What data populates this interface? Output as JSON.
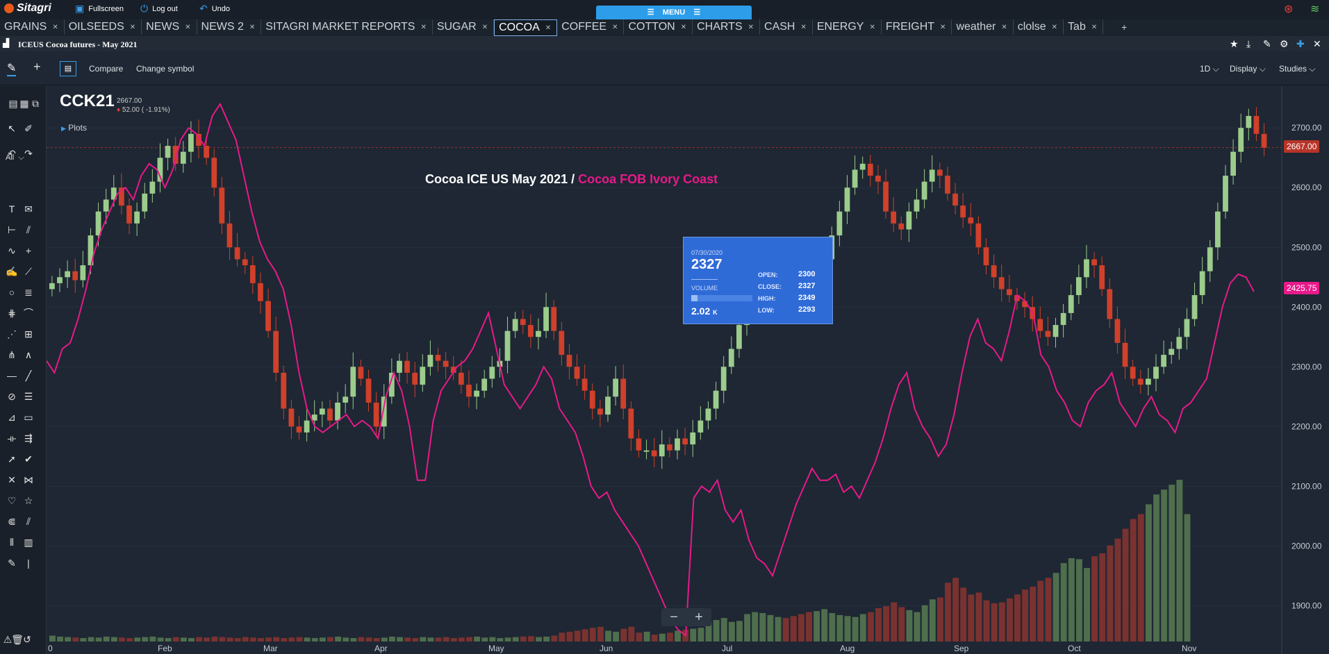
{
  "app": {
    "logo": "Sitagri",
    "fullscreen": "Fullscreen",
    "logout": "Log out",
    "undo": "Undo",
    "menu": "MENU"
  },
  "tabs": [
    "GRAINS",
    "OILSEEDS",
    "NEWS",
    "NEWS 2",
    "SITAGRI MARKET REPORTS",
    "SUGAR",
    "COCOA",
    "COFFEE",
    "COTTON",
    "CHARTS",
    "CASH",
    "ENERGY",
    "FREIGHT",
    "weather",
    "clolse",
    "Tab"
  ],
  "active_tab": "COCOA",
  "add_tab": "+",
  "subheader": {
    "title": "ICEUS Cocoa futures - May 2021"
  },
  "toolbar": {
    "compare": "Compare",
    "change_symbol": "Change symbol",
    "interval": "1D",
    "display": "Display",
    "studies": "Studies"
  },
  "tools": {
    "all": "All"
  },
  "symbol": {
    "code": "CCK21",
    "price": "2667.00",
    "change": "52.00 ( -1.91%)",
    "plots": "Plots"
  },
  "chart_title": {
    "part1": "Cocoa ICE US May 2021 /",
    "part2": "Cocoa FOB Ivory Coast",
    "color1": "#ffffff",
    "color2": "#e8198b"
  },
  "tooltip": {
    "date": "07/30/2020",
    "value": "2327",
    "volume_label": "VOLUME",
    "volume": "2.02",
    "volume_unit": "K",
    "volume_fraction": 0.1,
    "open_label": "OPEN:",
    "open": "2300",
    "close_label": "CLOSE:",
    "close": "2327",
    "high_label": "HIGH:",
    "high": "2349",
    "low_label": "LOW:",
    "low": "2293"
  },
  "chart_data": {
    "type": "line",
    "x_labels": [
      "0",
      "Feb",
      "Mar",
      "Apr",
      "May",
      "Jun",
      "Jul",
      "Aug",
      "Sep",
      "Oct",
      "Nov"
    ],
    "y_ticks": [
      "2700.00",
      "2600.00",
      "2500.00",
      "2400.00",
      "2300.00",
      "2200.00",
      "2100.00",
      "2000.00",
      "1900.00"
    ],
    "ylim": [
      1840,
      2770
    ],
    "last_price_tags": [
      "2667.00",
      "2425.75"
    ],
    "colors": {
      "up": "#9ccc8c",
      "down": "#d0402a",
      "fob": "#e8198b",
      "vol_up": "#4f6e4d",
      "vol_down": "#7a3230"
    },
    "series": [
      {
        "name": "Cocoa ICE US May 2021",
        "type": "candlestick",
        "approx_close": [
          2440,
          2450,
          2460,
          2445,
          2470,
          2520,
          2560,
          2580,
          2600,
          2570,
          2540,
          2560,
          2590,
          2610,
          2650,
          2670,
          2640,
          2660,
          2690,
          2670,
          2650,
          2600,
          2540,
          2500,
          2480,
          2470,
          2440,
          2410,
          2360,
          2290,
          2230,
          2200,
          2190,
          2210,
          2220,
          2230,
          2210,
          2240,
          2250,
          2300,
          2280,
          2240,
          2200,
          2250,
          2290,
          2310,
          2290,
          2270,
          2300,
          2320,
          2310,
          2300,
          2290,
          2270,
          2250,
          2260,
          2280,
          2300,
          2310,
          2360,
          2380,
          2370,
          2350,
          2360,
          2400,
          2360,
          2320,
          2300,
          2280,
          2260,
          2230,
          2220,
          2250,
          2280,
          2230,
          2180,
          2160,
          2160,
          2150,
          2170,
          2160,
          2180,
          2170,
          2190,
          2210,
          2230,
          2260,
          2300,
          2330,
          2370,
          2400,
          2440,
          2460,
          2470,
          2490,
          2480,
          2470,
          2450,
          2440,
          2460,
          2480,
          2520,
          2560,
          2600,
          2630,
          2640,
          2620,
          2610,
          2560,
          2540,
          2530,
          2560,
          2580,
          2610,
          2630,
          2620,
          2590,
          2570,
          2550,
          2540,
          2500,
          2470,
          2450,
          2430,
          2420,
          2410,
          2400,
          2380,
          2360,
          2350,
          2370,
          2390,
          2420,
          2450,
          2480,
          2470,
          2430,
          2380,
          2340,
          2300,
          2280,
          2270,
          2280,
          2300,
          2320,
          2330,
          2350,
          2380,
          2420,
          2460,
          2500,
          2560,
          2620,
          2660,
          2700,
          2720,
          2690,
          2667
        ]
      },
      {
        "name": "Cocoa FOB Ivory Coast",
        "type": "line",
        "values": [
          2310,
          2290,
          2330,
          2340,
          2380,
          2430,
          2490,
          2530,
          2560,
          2590,
          2600,
          2580,
          2620,
          2640,
          2630,
          2600,
          2630,
          2680,
          2700,
          2690,
          2670,
          2720,
          2740,
          2710,
          2680,
          2620,
          2560,
          2510,
          2480,
          2460,
          2430,
          2370,
          2290,
          2230,
          2200,
          2190,
          2200,
          2210,
          2220,
          2200,
          2210,
          2200,
          2180,
          2250,
          2290,
          2260,
          2200,
          2110,
          2110,
          2210,
          2260,
          2280,
          2300,
          2310,
          2330,
          2360,
          2390,
          2330,
          2270,
          2250,
          2230,
          2250,
          2270,
          2300,
          2280,
          2230,
          2210,
          2190,
          2150,
          2100,
          2080,
          2090,
          2060,
          2040,
          2020,
          2000,
          1970,
          1940,
          1910,
          1880,
          1860,
          1850,
          2080,
          2100,
          2090,
          2110,
          2060,
          2040,
          2060,
          2010,
          1980,
          1970,
          1950,
          1990,
          2030,
          2070,
          2100,
          2130,
          2110,
          2110,
          2120,
          2090,
          2100,
          2080,
          2110,
          2140,
          2180,
          2230,
          2270,
          2290,
          2230,
          2200,
          2180,
          2150,
          2170,
          2220,
          2290,
          2350,
          2380,
          2340,
          2330,
          2310,
          2360,
          2420,
          2410,
          2390,
          2320,
          2300,
          2260,
          2240,
          2210,
          2200,
          2240,
          2260,
          2270,
          2290,
          2240,
          2220,
          2200,
          2230,
          2250,
          2220,
          2210,
          2190,
          2230,
          2240,
          2260,
          2280,
          2340,
          2400,
          2440,
          2455,
          2450,
          2425.75
        ]
      }
    ],
    "volume_approx": [
      12,
      10,
      9,
      8,
      7,
      9,
      8,
      10,
      9,
      8,
      7,
      8,
      9,
      10,
      8,
      7,
      9,
      8,
      7,
      9,
      8,
      10,
      9,
      8,
      7,
      9,
      8,
      7,
      8,
      9,
      7,
      8,
      9,
      8,
      7,
      8,
      9,
      10,
      8,
      7,
      9,
      8,
      7,
      8,
      10,
      9,
      8,
      7,
      9,
      8,
      8,
      9,
      7,
      8,
      9,
      10,
      8,
      9,
      7,
      8,
      9,
      10,
      11,
      9,
      10,
      12,
      18,
      20,
      22,
      25,
      28,
      30,
      22,
      20,
      26,
      30,
      18,
      20,
      14,
      16,
      18,
      22,
      24,
      26,
      28,
      40,
      44,
      48,
      40,
      42,
      56,
      60,
      58,
      54,
      50,
      48,
      52,
      56,
      60,
      62,
      66,
      58,
      54,
      52,
      50,
      56,
      60,
      68,
      72,
      80,
      70,
      64,
      60,
      74,
      86,
      90,
      120,
      130,
      110,
      96,
      100,
      84,
      78,
      80,
      88,
      96,
      106,
      112,
      124,
      130,
      140,
      160,
      170,
      168,
      150,
      174,
      180,
      196,
      210,
      230,
      250,
      260,
      280,
      300,
      310,
      320,
      330,
      260
    ]
  }
}
